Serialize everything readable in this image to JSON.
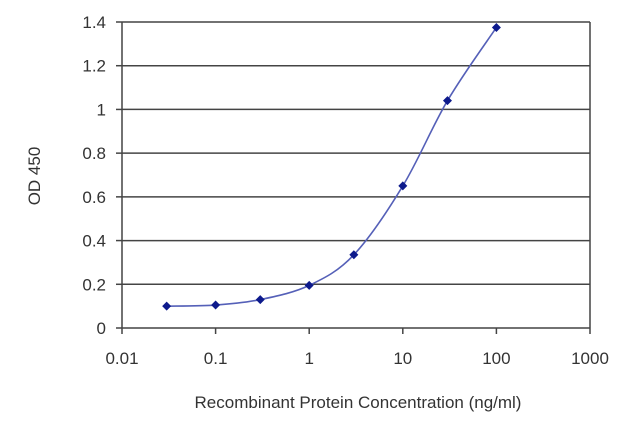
{
  "chart_data": {
    "type": "line",
    "title": "",
    "xlabel": "Recombinant Protein Concentration (ng/ml)",
    "ylabel": "OD 450",
    "x_scale": "log",
    "xlim": [
      0.01,
      1000
    ],
    "ylim": [
      0,
      1.4
    ],
    "x_ticks": [
      0.01,
      0.1,
      1,
      10,
      100,
      1000
    ],
    "x_tick_labels": [
      "0.01",
      "0.1",
      "1",
      "10",
      "100",
      "1000"
    ],
    "y_ticks": [
      0,
      0.2,
      0.4,
      0.6,
      0.8,
      1,
      1.2,
      1.4
    ],
    "y_tick_labels": [
      "0",
      "0.2",
      "0.4",
      "0.6",
      "0.8",
      "1",
      "1.2",
      "1.4"
    ],
    "grid": "horizontal",
    "legend": "none",
    "series": [
      {
        "x": [
          0.03,
          0.1,
          0.3,
          1,
          3,
          10,
          30,
          100
        ],
        "y": [
          0.1,
          0.105,
          0.13,
          0.195,
          0.335,
          0.65,
          1.04,
          1.375
        ]
      }
    ],
    "colors": {
      "line": "#5560b8",
      "marker": "#0d1a8c",
      "grid": "#444444",
      "axis": "#444444"
    }
  }
}
